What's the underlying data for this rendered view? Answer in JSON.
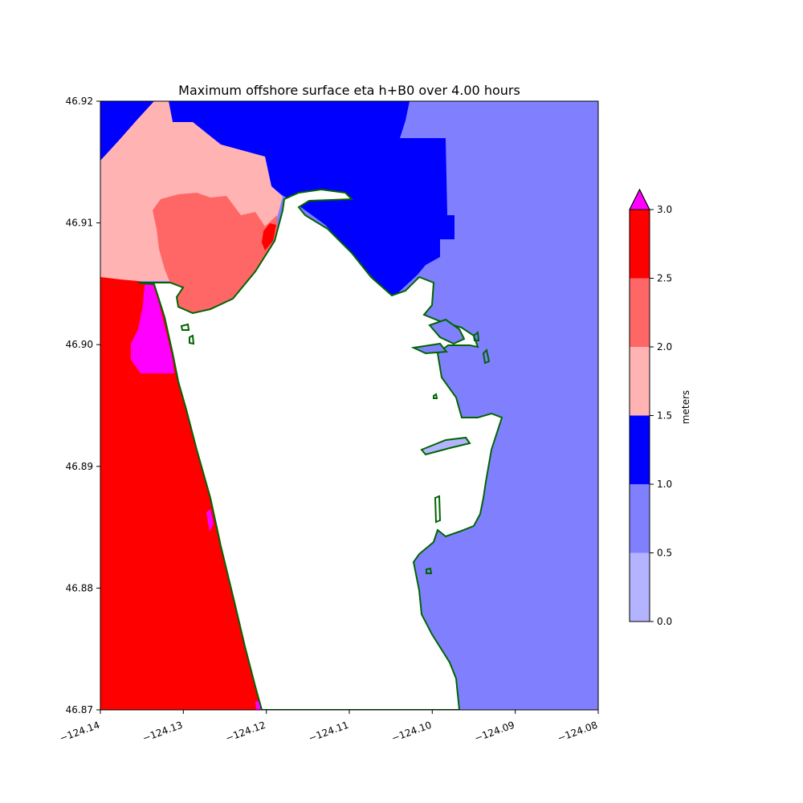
{
  "chart_data": {
    "type": "heatmap",
    "title": "Maximum offshore surface eta h+B0 over 4.00 hours",
    "xlabel": "",
    "ylabel": "",
    "x_ticks": [
      "−124.14",
      "−124.13",
      "−124.12",
      "−124.11",
      "−124.10",
      "−124.09",
      "−124.08"
    ],
    "y_ticks": [
      "46.87",
      "46.88",
      "46.89",
      "46.90",
      "46.91",
      "46.92"
    ],
    "xlim": [
      -124.14,
      -124.08
    ],
    "ylim": [
      46.87,
      46.92
    ],
    "colorbar": {
      "label": "meters",
      "ticks": [
        "0.0",
        "0.5",
        "1.0",
        "1.5",
        "2.0",
        "2.5",
        "3.0"
      ],
      "extend": "max",
      "levels": [
        {
          "from": 0.0,
          "to": 0.5,
          "color": "#b3b3ff"
        },
        {
          "from": 0.5,
          "to": 1.0,
          "color": "#8080ff"
        },
        {
          "from": 1.0,
          "to": 1.5,
          "color": "#0000ff"
        },
        {
          "from": 1.5,
          "to": 2.0,
          "color": "#ffb3b3"
        },
        {
          "from": 2.0,
          "to": 2.5,
          "color": "#ff6666"
        },
        {
          "from": 2.5,
          "to": 3.0,
          "color": "#ff0000"
        }
      ],
      "over_color": "#ff00ff"
    },
    "shoreline_color": "#006400",
    "land_color": "#ffffff"
  }
}
